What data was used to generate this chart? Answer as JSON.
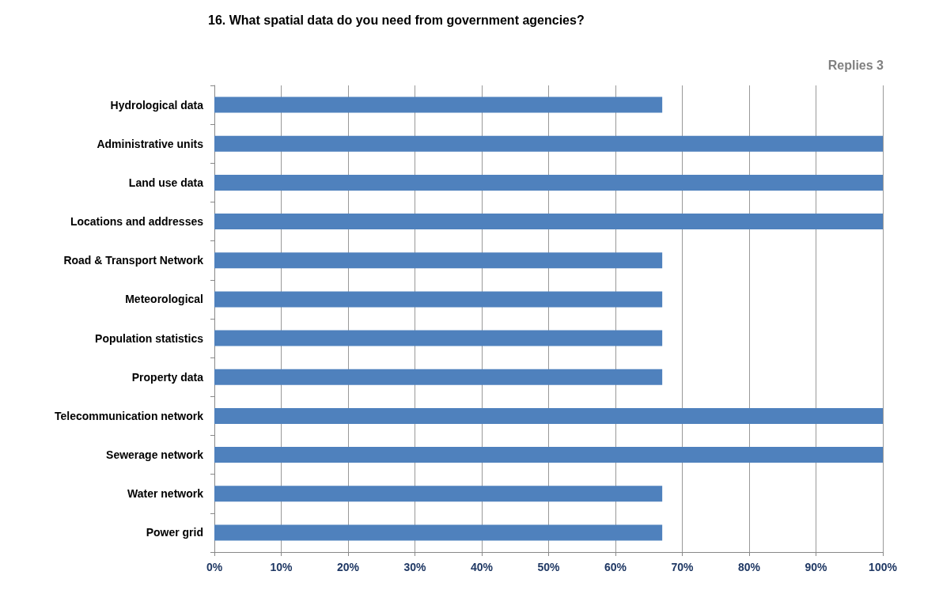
{
  "chart_data": {
    "type": "bar",
    "orientation": "horizontal",
    "title": "16. What spatial data do you need from government agencies?",
    "annotations": [
      "Replies 3"
    ],
    "categories": [
      "Hydrological data",
      "Administrative units",
      "Land use data",
      "Locations and addresses",
      "Road & Transport Network",
      "Meteorological",
      "Population statistics",
      "Property data",
      "Telecommunication network",
      "Sewerage network",
      "Water network",
      "Power grid"
    ],
    "values": [
      67,
      100,
      100,
      100,
      67,
      67,
      67,
      67,
      100,
      100,
      67,
      67
    ],
    "color": "#4f81bd",
    "xlim": [
      0,
      100
    ],
    "xticks": [
      {
        "value": 0,
        "label": "0%"
      },
      {
        "value": 10,
        "label": "10%"
      },
      {
        "value": 20,
        "label": "20%"
      },
      {
        "value": 30,
        "label": "30%"
      },
      {
        "value": 40,
        "label": "40%"
      },
      {
        "value": 50,
        "label": "50%"
      },
      {
        "value": 60,
        "label": "60%"
      },
      {
        "value": 70,
        "label": "70%"
      },
      {
        "value": 80,
        "label": "80%"
      },
      {
        "value": 90,
        "label": "90%"
      },
      {
        "value": 100,
        "label": "100%"
      }
    ],
    "grid": "x"
  }
}
